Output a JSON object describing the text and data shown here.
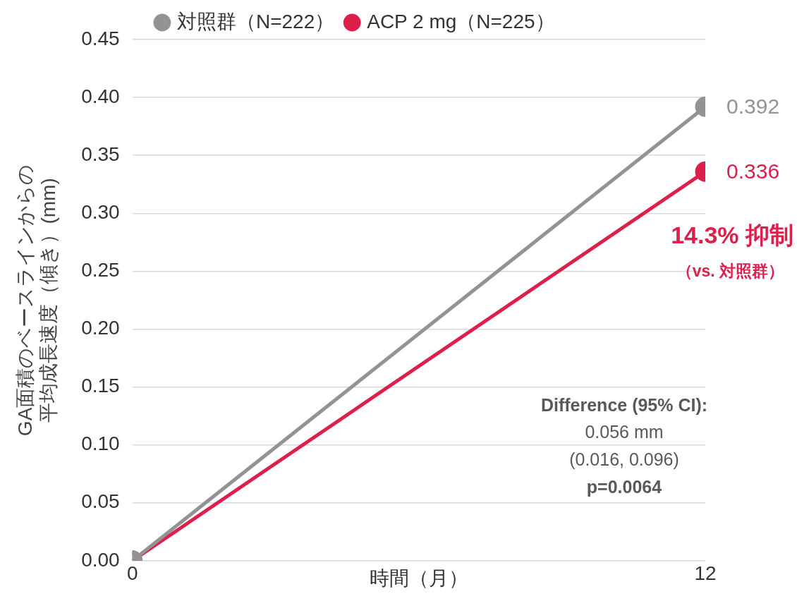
{
  "chart_data": {
    "type": "line",
    "xlabel": "時間（月）",
    "ylabel": "GA面積のベースラインからの平均成長速度（傾き）(mm)",
    "x": [
      0,
      12
    ],
    "xlim": [
      0,
      12
    ],
    "xticks": [
      0,
      12
    ],
    "ylim": [
      0,
      0.45
    ],
    "yticks": [
      {
        "value": 0,
        "label": "0.00"
      },
      0.05,
      {
        "value": 0.1,
        "label": "0.10"
      },
      0.15,
      {
        "value": 0.2,
        "label": "0.20"
      },
      0.25,
      {
        "value": 0.3,
        "label": "0.30"
      },
      0.35,
      {
        "value": 0.4,
        "label": "0.40"
      },
      0.45
    ],
    "series": [
      {
        "name": "対照群（N=222）",
        "color": "#939393",
        "values": [
          0,
          0.392
        ],
        "value_labels": [
          null,
          "0.392"
        ]
      },
      {
        "name": "ACP 2 mg（N=225）",
        "color": "#dc1f4b",
        "values": [
          0,
          0.336
        ],
        "value_labels": [
          null,
          "0.336"
        ]
      }
    ],
    "annotations": [
      "14.3% 抑制",
      "（vs. 対照群）",
      "Difference (95% CI):",
      "0.056 mm",
      "(0.016, 0.096)",
      "p=0.0064"
    ],
    "grid": "y",
    "legend": "top",
    "marker": "circle",
    "line_style": "solid"
  }
}
